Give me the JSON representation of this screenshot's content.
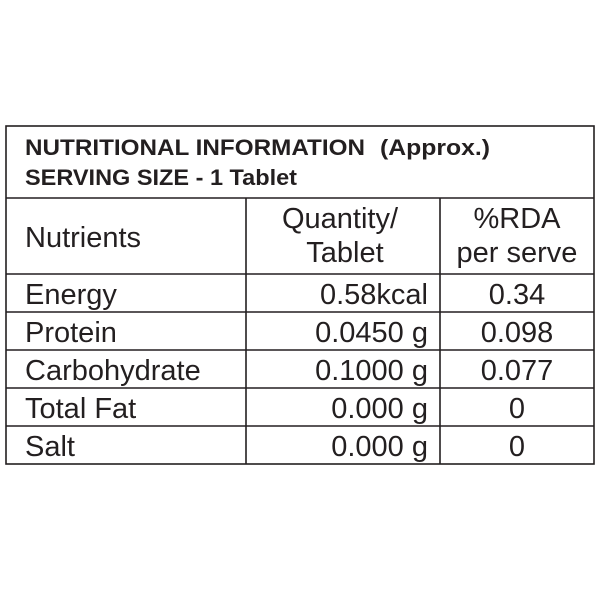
{
  "header": {
    "title": "NUTRITIONAL INFORMATION",
    "note": "(Approx.)",
    "serving": "SERVING SIZE - 1 Tablet"
  },
  "table": {
    "header": [
      "Nutrients",
      [
        "Quantity/",
        "Tablet"
      ],
      [
        "%RDA",
        "per serve"
      ]
    ],
    "rows": [
      [
        "Energy",
        "0.58kcal",
        "0.34"
      ],
      [
        "Protein",
        "0.0450 g",
        "0.098"
      ],
      [
        "Carbohydrate",
        "0.1000 g",
        "0.077"
      ],
      [
        "Total Fat",
        "0.000 g",
        "0"
      ],
      [
        "Salt",
        "0.000 g",
        "0"
      ]
    ]
  }
}
